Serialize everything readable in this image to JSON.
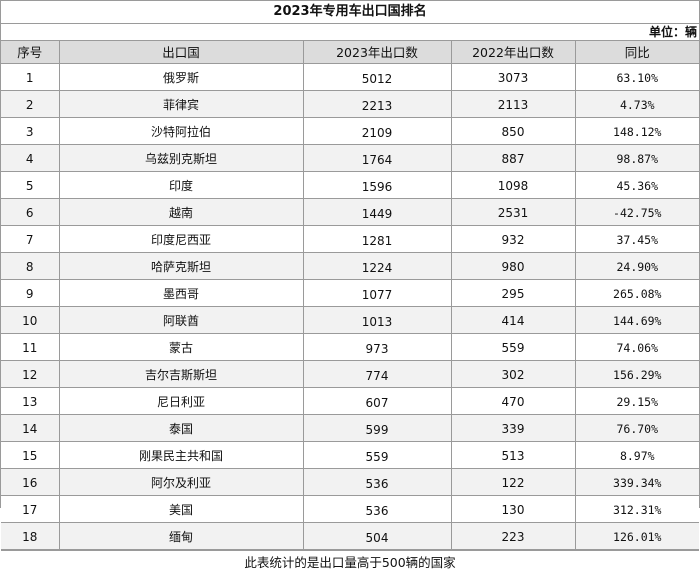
{
  "title": "2023年专用车出口国排名",
  "unit": "单位：辆",
  "columns": [
    "序号",
    "出口国",
    "2023年出口数",
    "2022年出口数",
    "同比"
  ],
  "rows": [
    {
      "rank": "1",
      "country": "俄罗斯",
      "y2023": "5012",
      "y2022": "3073",
      "yoy": "63.10%"
    },
    {
      "rank": "2",
      "country": "菲律宾",
      "y2023": "2213",
      "y2022": "2113",
      "yoy": "4.73%"
    },
    {
      "rank": "3",
      "country": "沙特阿拉伯",
      "y2023": "2109",
      "y2022": "850",
      "yoy": "148.12%"
    },
    {
      "rank": "4",
      "country": "乌兹别克斯坦",
      "y2023": "1764",
      "y2022": "887",
      "yoy": "98.87%"
    },
    {
      "rank": "5",
      "country": "印度",
      "y2023": "1596",
      "y2022": "1098",
      "yoy": "45.36%"
    },
    {
      "rank": "6",
      "country": "越南",
      "y2023": "1449",
      "y2022": "2531",
      "yoy": "-42.75%"
    },
    {
      "rank": "7",
      "country": "印度尼西亚",
      "y2023": "1281",
      "y2022": "932",
      "yoy": "37.45%"
    },
    {
      "rank": "8",
      "country": "哈萨克斯坦",
      "y2023": "1224",
      "y2022": "980",
      "yoy": "24.90%"
    },
    {
      "rank": "9",
      "country": "墨西哥",
      "y2023": "1077",
      "y2022": "295",
      "yoy": "265.08%"
    },
    {
      "rank": "10",
      "country": "阿联酋",
      "y2023": "1013",
      "y2022": "414",
      "yoy": "144.69%"
    },
    {
      "rank": "11",
      "country": "蒙古",
      "y2023": "973",
      "y2022": "559",
      "yoy": "74.06%"
    },
    {
      "rank": "12",
      "country": "吉尔吉斯斯坦",
      "y2023": "774",
      "y2022": "302",
      "yoy": "156.29%"
    },
    {
      "rank": "13",
      "country": "尼日利亚",
      "y2023": "607",
      "y2022": "470",
      "yoy": "29.15%"
    },
    {
      "rank": "14",
      "country": "泰国",
      "y2023": "599",
      "y2022": "339",
      "yoy": "76.70%"
    },
    {
      "rank": "15",
      "country": "刚果民主共和国",
      "y2023": "559",
      "y2022": "513",
      "yoy": "8.97%"
    },
    {
      "rank": "16",
      "country": "阿尔及利亚",
      "y2023": "536",
      "y2022": "122",
      "yoy": "339.34%"
    },
    {
      "rank": "17",
      "country": "美国",
      "y2023": "536",
      "y2022": "130",
      "yoy": "312.31%"
    },
    {
      "rank": "18",
      "country": "缅甸",
      "y2023": "504",
      "y2022": "223",
      "yoy": "126.01%"
    }
  ],
  "footer": "此表统计的是出口量高于500辆的国家"
}
